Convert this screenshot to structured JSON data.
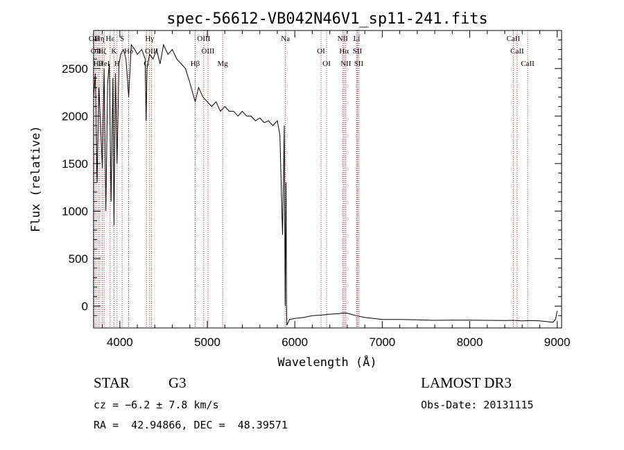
{
  "chart_data": {
    "type": "line",
    "title": "spec-56612-VB042N46V1_sp11-241.fits",
    "xlabel": "Wavelength (Å)",
    "ylabel": "Flux (relative)",
    "xlim": [
      3700,
      9050
    ],
    "ylim": [
      -230,
      2900
    ],
    "xticks": [
      4000,
      5000,
      6000,
      7000,
      8000,
      9000
    ],
    "yticks": [
      0,
      500,
      1000,
      1500,
      2000,
      2500
    ],
    "series": [
      {
        "name": "spectrum",
        "x": [
          3700,
          3720,
          3740,
          3760,
          3780,
          3800,
          3820,
          3840,
          3860,
          3880,
          3900,
          3920,
          3933,
          3950,
          3968,
          3990,
          4010,
          4040,
          4070,
          4101,
          4130,
          4170,
          4200,
          4250,
          4290,
          4300,
          4310,
          4340,
          4380,
          4420,
          4460,
          4500,
          4550,
          4600,
          4650,
          4700,
          4750,
          4800,
          4861,
          4900,
          4950,
          5000,
          5050,
          5100,
          5150,
          5200,
          5250,
          5300,
          5350,
          5400,
          5450,
          5500,
          5550,
          5600,
          5650,
          5700,
          5750,
          5800,
          5830,
          5860,
          5880,
          5890,
          5896,
          5900,
          5905,
          5910,
          5920,
          5940,
          6000,
          6100,
          6200,
          6300,
          6400,
          6500,
          6563,
          6600,
          6700,
          6800,
          6900,
          7000,
          7200,
          7400,
          7600,
          7800,
          8000,
          8200,
          8400,
          8500,
          8600,
          8700,
          8800,
          8900,
          8950,
          8980,
          9000
        ],
        "y": [
          2200,
          2450,
          1300,
          2300,
          1900,
          1450,
          2500,
          1000,
          2350,
          2550,
          1100,
          2400,
          850,
          2450,
          1500,
          2550,
          2650,
          2700,
          2600,
          2200,
          2750,
          2700,
          2650,
          2700,
          2600,
          1950,
          2500,
          2650,
          2600,
          2700,
          2550,
          2750,
          2650,
          2700,
          2600,
          2550,
          2500,
          2350,
          2150,
          2300,
          2200,
          2150,
          2100,
          2150,
          2050,
          2100,
          2050,
          2050,
          2000,
          2050,
          2000,
          2000,
          1950,
          1980,
          1930,
          1950,
          1900,
          1950,
          1800,
          750,
          1900,
          0,
          850,
          1300,
          0,
          -200,
          -180,
          -140,
          -130,
          -120,
          -100,
          -95,
          -85,
          -80,
          -70,
          -75,
          -100,
          -120,
          -130,
          -140,
          -140,
          -145,
          -150,
          -148,
          -148,
          -150,
          -152,
          -150,
          -155,
          -152,
          -155,
          -165,
          -170,
          -140,
          -50
        ]
      }
    ],
    "lines": [
      {
        "wl": 3704,
        "label": "OII"
      },
      {
        "wl": 3727,
        "label": "OII"
      },
      {
        "wl": 3750,
        "label": "Hθ"
      },
      {
        "wl": 3770,
        "label": "Hη"
      },
      {
        "wl": 3798,
        "label": "Hζ"
      },
      {
        "wl": 3820,
        "label": "HeI"
      },
      {
        "wl": 3889,
        "label": "Hε"
      },
      {
        "wl": 3933,
        "label": "K"
      },
      {
        "wl": 3968,
        "label": "H"
      },
      {
        "wl": 4026,
        "label": "S"
      },
      {
        "wl": 4101,
        "label": "Hδ"
      },
      {
        "wl": 4304,
        "label": "G"
      },
      {
        "wl": 4340,
        "label": "Hγ"
      },
      {
        "wl": 4363,
        "label": "OIII"
      },
      {
        "wl": 4861,
        "label": "Hβ"
      },
      {
        "wl": 4959,
        "label": "OIII"
      },
      {
        "wl": 5007,
        "label": "OIII"
      },
      {
        "wl": 5175,
        "label": "Mg"
      },
      {
        "wl": 5893,
        "label": "Na"
      },
      {
        "wl": 6300,
        "label": "OI"
      },
      {
        "wl": 6364,
        "label": "OI"
      },
      {
        "wl": 6548,
        "label": "NII"
      },
      {
        "wl": 6563,
        "label": "Hα"
      },
      {
        "wl": 6583,
        "label": "NII"
      },
      {
        "wl": 6707,
        "label": "Li"
      },
      {
        "wl": 6716,
        "label": "SII"
      },
      {
        "wl": 6731,
        "label": "SII"
      },
      {
        "wl": 8498,
        "label": "CaII"
      },
      {
        "wl": 8542,
        "label": "CaII"
      },
      {
        "wl": 8662,
        "label": "CaII"
      }
    ]
  },
  "info": {
    "object_type": "STAR",
    "subclass": "G3",
    "cz": "cz = −6.2 ± 7.8 km/s",
    "radec": "RA =  42.94866, DEC =  48.39571",
    "survey": "LAMOST DR3",
    "obs_date": "Obs-Date: 20131115"
  },
  "colors": {
    "axis": "#000000",
    "spectrum": "#000000",
    "line_marker": "#b22222",
    "background": "#ffffff"
  }
}
